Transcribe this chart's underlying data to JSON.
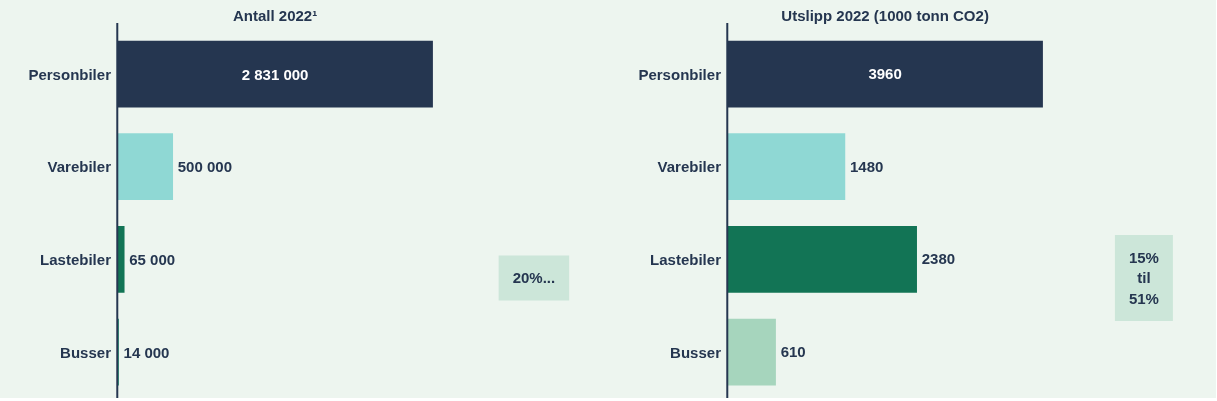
{
  "chart_data": [
    {
      "type": "bar",
      "orientation": "horizontal",
      "title": "Antall 2022¹",
      "categories": [
        "Personbiler",
        "Varebiler",
        "Lastebiler",
        "Busser"
      ],
      "values": [
        2831000,
        500000,
        65000,
        14000
      ],
      "colors": [
        "#253650",
        "#8fd8d4",
        "#127455",
        "#1a8a6a"
      ],
      "value_labels": [
        "2 831 000",
        "500 000",
        "65 000",
        "14 000"
      ],
      "annotations": [
        "20%..."
      ]
    },
    {
      "type": "bar",
      "orientation": "horizontal",
      "title": "Utslipp 2022 (1000 tonn CO2)",
      "categories": [
        "Personbiler",
        "Varebiler",
        "Lastebiler",
        "Busser"
      ],
      "values": [
        3960,
        1480,
        2380,
        610
      ],
      "colors": [
        "#253650",
        "#8fd8d4",
        "#127455",
        "#a6d5bd"
      ],
      "data_labels": true,
      "annotations": [
        "15% til 51%"
      ]
    }
  ]
}
